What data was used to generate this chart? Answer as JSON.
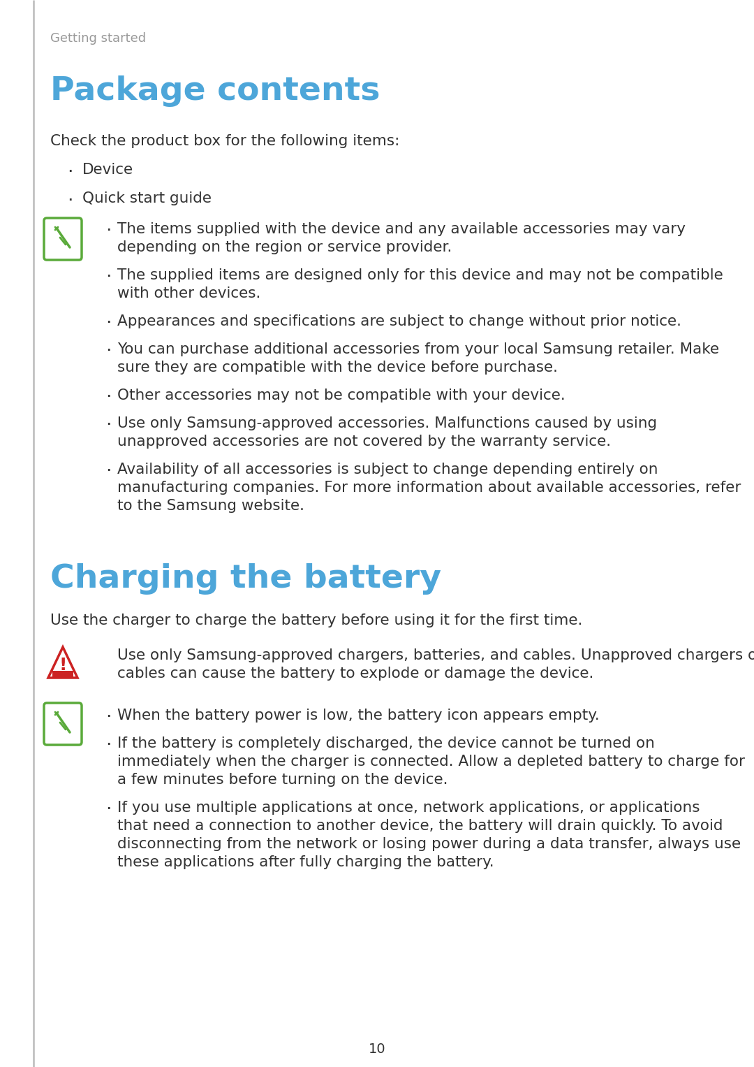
{
  "bg_color": "#ffffff",
  "left_border_color": "#bbbbbb",
  "header_text": "Getting started",
  "header_color": "#999999",
  "section1_title": "Package contents",
  "section1_title_color": "#4da6d9",
  "section2_title": "Charging the battery",
  "section2_title_color": "#4da6d9",
  "body_color": "#333333",
  "body_font_size": 15.5,
  "title_font_size": 34,
  "header_font_size": 13,
  "note_icon_color": "#5aaa3a",
  "warn_icon_color": "#cc2222",
  "page_number": "10",
  "section1_intro": "Check the product box for the following items:",
  "section1_bullets": [
    "Device",
    "Quick start guide"
  ],
  "section1_notes": [
    "The items supplied with the device and any available accessories may vary\ndepending on the region or service provider.",
    "The supplied items are designed only for this device and may not be compatible\nwith other devices.",
    "Appearances and specifications are subject to change without prior notice.",
    "You can purchase additional accessories from your local Samsung retailer. Make\nsure they are compatible with the device before purchase.",
    "Other accessories may not be compatible with your device.",
    "Use only Samsung-approved accessories. Malfunctions caused by using\nunapproved accessories are not covered by the warranty service.",
    "Availability of all accessories is subject to change depending entirely on\nmanufacturing companies. For more information about available accessories, refer\nto the Samsung website."
  ],
  "section2_intro": "Use the charger to charge the battery before using it for the first time.",
  "section2_warning": "Use only Samsung-approved chargers, batteries, and cables. Unapproved chargers or\ncables can cause the battery to explode or damage the device.",
  "section2_notes": [
    "When the battery power is low, the battery icon appears empty.",
    "If the battery is completely discharged, the device cannot be turned on\nimmediately when the charger is connected. Allow a depleted battery to charge for\na few minutes before turning on the device.",
    "If you use multiple applications at once, network applications, or applications\nthat need a connection to another device, the battery will drain quickly. To avoid\ndisconnecting from the network or losing power during a data transfer, always use\nthese applications after fully charging the battery."
  ]
}
